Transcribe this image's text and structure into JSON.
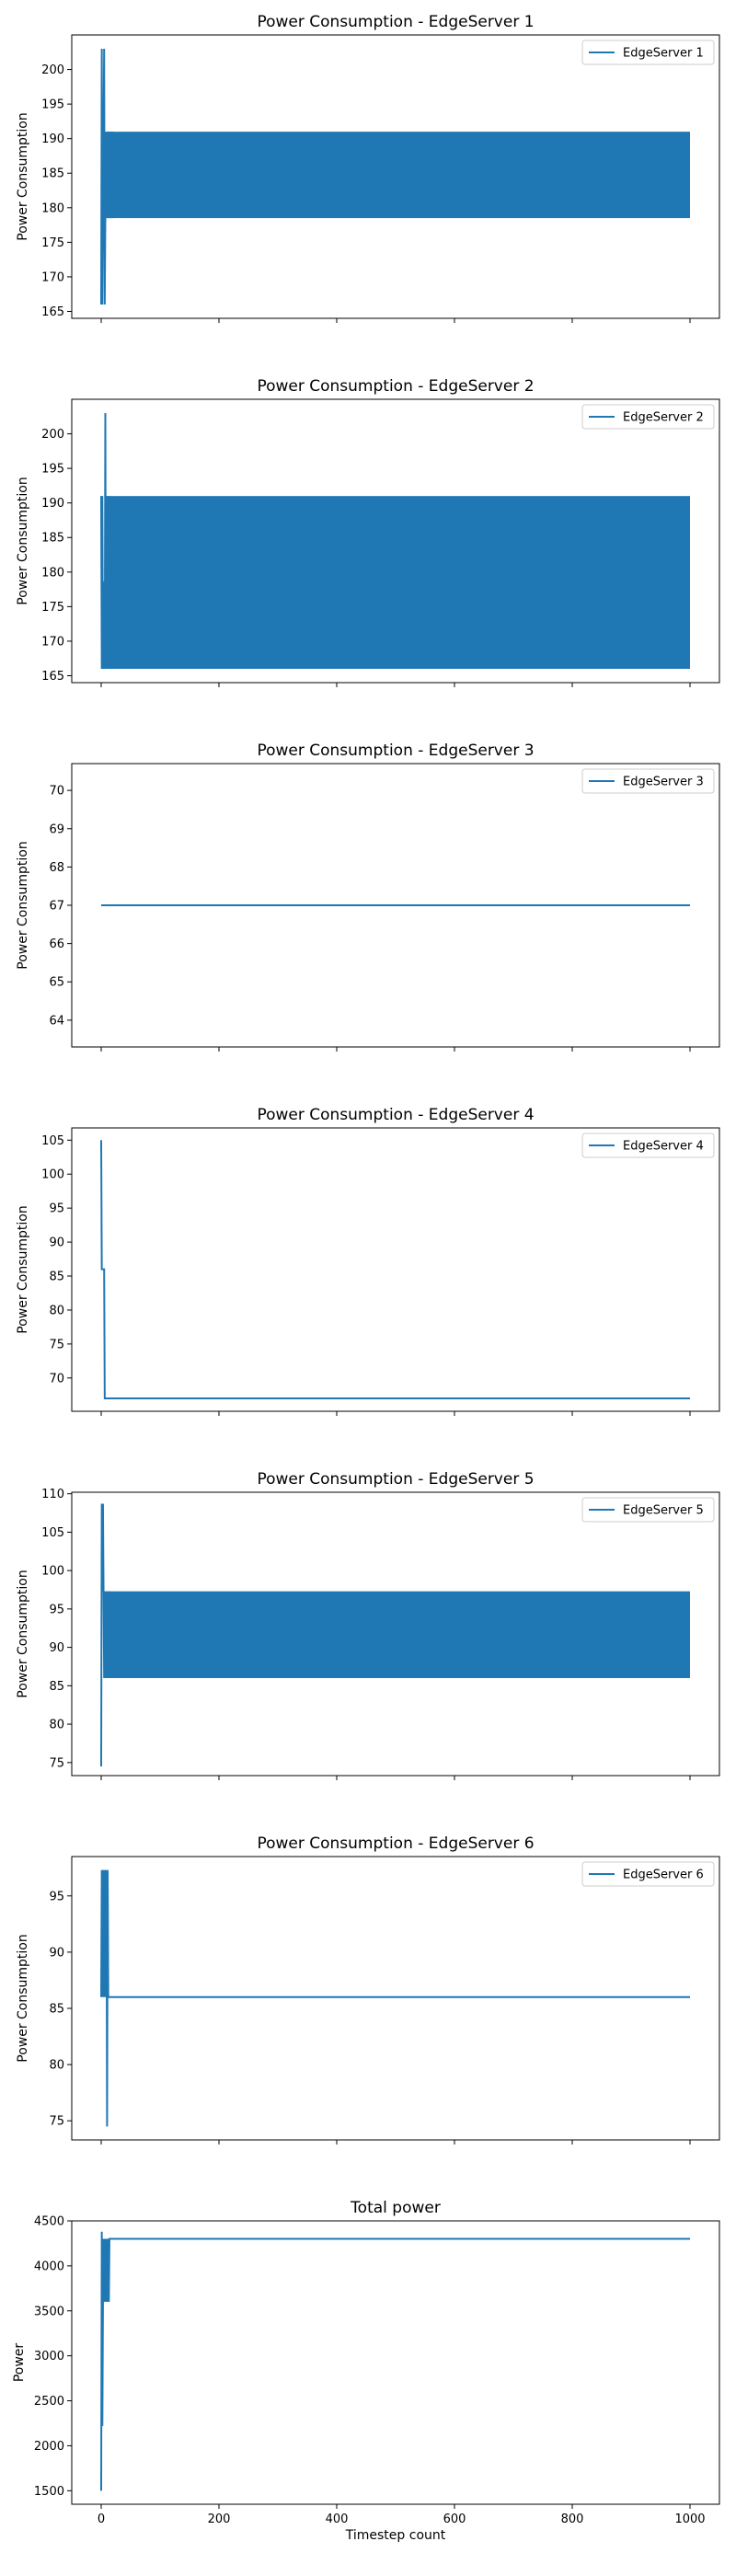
{
  "chart_data": [
    {
      "type": "line",
      "title": "Power Consumption - EdgeServer 1",
      "ylabel": "Power Consumption",
      "xlabel": "",
      "xlim": [
        -50,
        1050
      ],
      "ylim": [
        164,
        205
      ],
      "yticks": [
        165,
        170,
        175,
        180,
        185,
        190,
        195,
        200
      ],
      "xticks": [
        0,
        200,
        400,
        600,
        800,
        1000
      ],
      "show_xtick_labels": false,
      "legend": "top-right",
      "color": "#1f77b4",
      "series": [
        {
          "name": "EdgeServer 1",
          "x": [
            0,
            1,
            2,
            3,
            4,
            5,
            6,
            7,
            8,
            9,
            10,
            11,
            12,
            13,
            14,
            15,
            16,
            17,
            18,
            19,
            20
          ],
          "y": [
            166,
            203,
            166,
            178.5,
            191,
            203,
            166,
            178.5,
            191,
            178.5,
            191,
            178.5,
            191,
            178.5,
            191,
            178.5,
            191,
            178.5,
            191,
            178.5,
            191
          ],
          "band": {
            "from": 10,
            "to": 1000,
            "low": 178.5,
            "high": 191
          }
        }
      ]
    },
    {
      "type": "line",
      "title": "Power Consumption - EdgeServer 2",
      "ylabel": "Power Consumption",
      "xlabel": "",
      "xlim": [
        -50,
        1050
      ],
      "ylim": [
        164,
        205
      ],
      "yticks": [
        165,
        170,
        175,
        180,
        185,
        190,
        195,
        200
      ],
      "xticks": [
        0,
        200,
        400,
        600,
        800,
        1000
      ],
      "show_xtick_labels": false,
      "legend": "top-right",
      "color": "#1f77b4",
      "series": [
        {
          "name": "EdgeServer 2",
          "x": [
            0,
            1,
            2,
            3,
            4,
            5,
            6,
            7,
            8,
            9,
            10,
            11,
            12
          ],
          "y": [
            191,
            166,
            191,
            166,
            178.5,
            178.5,
            166,
            203,
            166,
            191,
            166,
            191,
            166
          ],
          "band": {
            "from": 10,
            "to": 1000,
            "low": 166,
            "high": 191
          }
        }
      ]
    },
    {
      "type": "line",
      "title": "Power Consumption - EdgeServer 3",
      "ylabel": "Power Consumption",
      "xlabel": "",
      "xlim": [
        -50,
        1050
      ],
      "ylim": [
        63.3,
        70.7
      ],
      "yticks": [
        64,
        65,
        66,
        67,
        68,
        69,
        70
      ],
      "xticks": [
        0,
        200,
        400,
        600,
        800,
        1000
      ],
      "show_xtick_labels": false,
      "legend": "top-right",
      "color": "#1f77b4",
      "series": [
        {
          "name": "EdgeServer 3",
          "x": [
            0,
            1000
          ],
          "y": [
            67,
            67
          ]
        }
      ]
    },
    {
      "type": "line",
      "title": "Power Consumption - EdgeServer 4",
      "ylabel": "Power Consumption",
      "xlabel": "",
      "xlim": [
        -50,
        1050
      ],
      "ylim": [
        65.1,
        106.8
      ],
      "yticks": [
        70,
        75,
        80,
        85,
        90,
        95,
        100,
        105
      ],
      "xticks": [
        0,
        200,
        400,
        600,
        800,
        1000
      ],
      "show_xtick_labels": false,
      "legend": "top-right",
      "color": "#1f77b4",
      "series": [
        {
          "name": "EdgeServer 4",
          "x": [
            0,
            1,
            2,
            5,
            6,
            7,
            1000
          ],
          "y": [
            105,
            86,
            86,
            86,
            67,
            67,
            67
          ]
        }
      ]
    },
    {
      "type": "line",
      "title": "Power Consumption - EdgeServer 5",
      "ylabel": "Power Consumption",
      "xlabel": "",
      "xlim": [
        -50,
        1050
      ],
      "ylim": [
        73.3,
        110.2
      ],
      "yticks": [
        75,
        80,
        85,
        90,
        95,
        100,
        105,
        110
      ],
      "xticks": [
        0,
        200,
        400,
        600,
        800,
        1000
      ],
      "show_xtick_labels": false,
      "legend": "top-right",
      "color": "#1f77b4",
      "series": [
        {
          "name": "EdgeServer 5",
          "x": [
            0,
            1,
            2,
            3,
            4,
            5,
            6,
            7,
            8,
            9,
            10,
            11,
            12,
            13,
            14
          ],
          "y": [
            74.5,
            108.7,
            97.3,
            108.7,
            97.3,
            86,
            97.3,
            86,
            97.3,
            86,
            97.3,
            86,
            97.3,
            86,
            97.3
          ],
          "band": {
            "from": 12,
            "to": 1000,
            "low": 86,
            "high": 97.3
          }
        }
      ]
    },
    {
      "type": "line",
      "title": "Power Consumption - EdgeServer 6",
      "ylabel": "Power Consumption",
      "xlabel": "",
      "xlim": [
        -50,
        1050
      ],
      "ylim": [
        73.3,
        98.5
      ],
      "yticks": [
        75,
        80,
        85,
        90,
        95
      ],
      "xticks": [
        0,
        200,
        400,
        600,
        800,
        1000
      ],
      "show_xtick_labels": false,
      "legend": "top-right",
      "color": "#1f77b4",
      "series": [
        {
          "name": "EdgeServer 6",
          "x": [
            0,
            1,
            2,
            3,
            4,
            5,
            6,
            7,
            8,
            9,
            10,
            11,
            12,
            1000
          ],
          "y": [
            86,
            97.3,
            86,
            97.3,
            86,
            97.3,
            86,
            97.3,
            86,
            97.3,
            74.5,
            97.3,
            86,
            86
          ]
        }
      ]
    },
    {
      "type": "line",
      "title": "Total power",
      "ylabel": "Power",
      "xlabel": "Timestep count",
      "xlim": [
        -50,
        1050
      ],
      "ylim": [
        1350,
        4500
      ],
      "yticks": [
        1500,
        2000,
        2500,
        3000,
        3500,
        4000,
        4500
      ],
      "xticks": [
        0,
        200,
        400,
        600,
        800,
        1000
      ],
      "show_xtick_labels": true,
      "legend": null,
      "color": "#1f77b4",
      "series": [
        {
          "name": "",
          "x": [
            0,
            1,
            2,
            3,
            4,
            5,
            6,
            7,
            8,
            9,
            10,
            11,
            12,
            13,
            14,
            1000
          ],
          "y": [
            1500,
            4380,
            2220,
            3600,
            4300,
            3600,
            4300,
            3600,
            4300,
            3600,
            4300,
            3600,
            4300,
            3600,
            4300,
            4300
          ]
        }
      ]
    }
  ]
}
